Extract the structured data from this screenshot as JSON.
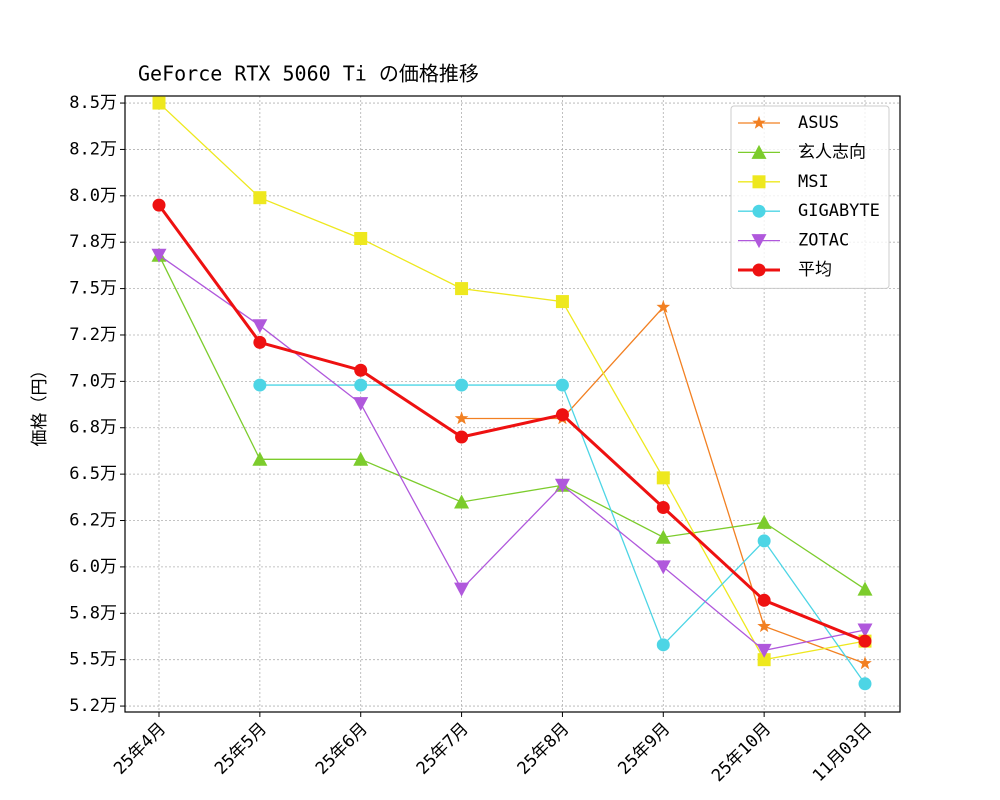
{
  "chart_data": {
    "type": "line",
    "title": "GeForce RTX 5060 Ti の価格推移",
    "y_label": "価格（円）",
    "categories": [
      "25年4月",
      "25年5月",
      "25年6月",
      "25年7月",
      "25年8月",
      "25年9月",
      "25年10月",
      "11月03日"
    ],
    "series": [
      {
        "name": "ASUS",
        "color": "#f28022",
        "marker": "star",
        "linewidth": 1.3,
        "values": [
          null,
          null,
          null,
          68000,
          68000,
          74000,
          56800,
          54800
        ]
      },
      {
        "name": "玄人志向",
        "color": "#7ccc2c",
        "marker": "triangle",
        "linewidth": 1.3,
        "values": [
          76800,
          65800,
          65800,
          63500,
          64400,
          61600,
          62400,
          58800
        ]
      },
      {
        "name": "MSI",
        "color": "#eee81e",
        "marker": "square",
        "linewidth": 1.3,
        "values": [
          85000,
          79900,
          77700,
          75000,
          74300,
          64800,
          55000,
          56000
        ]
      },
      {
        "name": "GIGABYTE",
        "color": "#4dd5e5",
        "marker": "circle",
        "linewidth": 1.3,
        "values": [
          null,
          69800,
          69800,
          69800,
          69800,
          55800,
          61400,
          53700
        ]
      },
      {
        "name": "ZOTAC",
        "color": "#b058dc",
        "marker": "triangle-down",
        "linewidth": 1.3,
        "values": [
          76800,
          73000,
          68800,
          58800,
          64400,
          60000,
          55500,
          56600
        ]
      },
      {
        "name": "平均",
        "color": "#ee1111",
        "marker": "circle",
        "linewidth": 3,
        "values": [
          79500,
          72100,
          70600,
          67000,
          68200,
          63200,
          58200,
          56000
        ]
      }
    ],
    "ylim": [
      52180,
      85380
    ],
    "yticks": [
      {
        "value": 52500,
        "label": "5.2万"
      },
      {
        "value": 55000,
        "label": "5.5万"
      },
      {
        "value": 57500,
        "label": "5.8万"
      },
      {
        "value": 60000,
        "label": "6.0万"
      },
      {
        "value": 62500,
        "label": "6.2万"
      },
      {
        "value": 65000,
        "label": "6.5万"
      },
      {
        "value": 67500,
        "label": "6.8万"
      },
      {
        "value": 70000,
        "label": "7.0万"
      },
      {
        "value": 72500,
        "label": "7.2万"
      },
      {
        "value": 75000,
        "label": "7.5万"
      },
      {
        "value": 77500,
        "label": "7.8万"
      },
      {
        "value": 80000,
        "label": "8.0万"
      },
      {
        "value": 82500,
        "label": "8.2万"
      },
      {
        "value": 85000,
        "label": "8.5万"
      }
    ],
    "grid": true,
    "legend": "upper right"
  }
}
